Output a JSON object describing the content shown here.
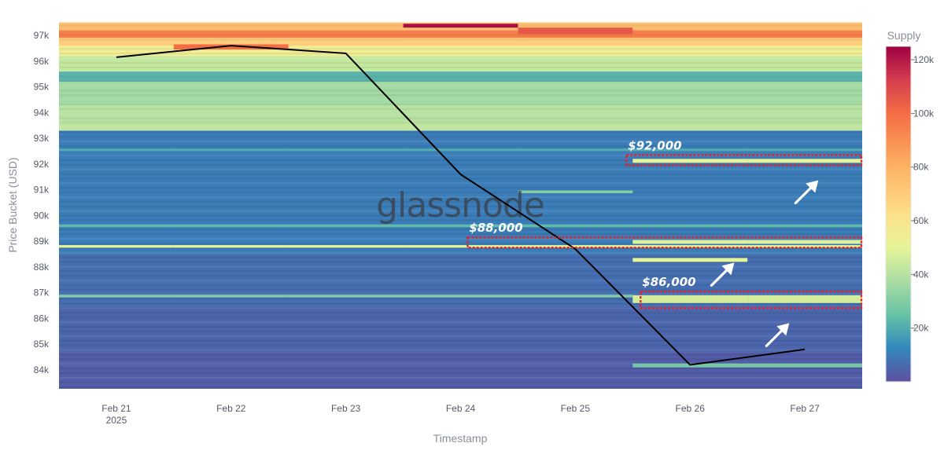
{
  "chart_data": {
    "type": "heatmap",
    "watermark": "glassnode",
    "xlabel": "Timestamp",
    "ylabel": "Price Bucket (USD)",
    "x_categories": [
      "Feb 21",
      "Feb 22",
      "Feb 23",
      "Feb 24",
      "Feb 25",
      "Feb 26",
      "Feb 27"
    ],
    "x_sublabel": {
      "category": "Feb 21",
      "text": "2025"
    },
    "y_ticks": [
      84000,
      85000,
      86000,
      87000,
      88000,
      89000,
      90000,
      91000,
      92000,
      93000,
      94000,
      95000,
      96000,
      97000
    ],
    "y_tick_labels": [
      "84k",
      "85k",
      "86k",
      "87k",
      "88k",
      "89k",
      "90k",
      "91k",
      "92k",
      "93k",
      "94k",
      "95k",
      "96k",
      "97k"
    ],
    "ylim": [
      83250,
      97500
    ],
    "colorscale": {
      "title": "Supply",
      "min": 0,
      "max": 125000,
      "ticks": [
        20000,
        40000,
        60000,
        80000,
        100000,
        120000
      ],
      "tick_labels": [
        "20k",
        "40k",
        "60k",
        "80k",
        "100k",
        "120k"
      ]
    },
    "price_line": {
      "color": "#000000",
      "points": [
        {
          "x": "Feb 21",
          "y": 96150
        },
        {
          "x": "Feb 22",
          "y": 96600
        },
        {
          "x": "Feb 23",
          "y": 96300
        },
        {
          "x": "Feb 24",
          "y": 91600
        },
        {
          "x": "Feb 25",
          "y": 88700
        },
        {
          "x": "Feb 26",
          "y": 84200
        },
        {
          "x": "Feb 27",
          "y": 84800
        }
      ]
    },
    "supply_bands": {
      "description": "Supply per price bucket (rows apply to all days unless restricted)",
      "rows": [
        {
          "from": 83250,
          "to": 84700,
          "value": 3000
        },
        {
          "from": 84700,
          "to": 86500,
          "value": 5000
        },
        {
          "from": 86500,
          "to": 88500,
          "value": 7000
        },
        {
          "from": 88500,
          "to": 93300,
          "value": 10000
        },
        {
          "from": 93300,
          "to": 93600,
          "value": 42000
        },
        {
          "from": 93600,
          "to": 94300,
          "value": 40000
        },
        {
          "from": 94300,
          "to": 95200,
          "value": 36000
        },
        {
          "from": 95200,
          "to": 95600,
          "value": 22000
        },
        {
          "from": 95600,
          "to": 96200,
          "value": 43000
        },
        {
          "from": 96200,
          "to": 96600,
          "value": 55000
        },
        {
          "from": 96600,
          "to": 96900,
          "value": 70000
        },
        {
          "from": 96900,
          "to": 97200,
          "value": 95000
        },
        {
          "from": 97200,
          "to": 97500,
          "value": 75000
        }
      ],
      "highlights": [
        {
          "from": 88750,
          "to": 88850,
          "value": 52000,
          "days": [
            "Feb 21",
            "Feb 22",
            "Feb 23",
            "Feb 24",
            "Feb 25",
            "Feb 26",
            "Feb 27"
          ]
        },
        {
          "from": 86820,
          "to": 86920,
          "value": 30000,
          "days": [
            "Feb 21",
            "Feb 22",
            "Feb 23",
            "Feb 24",
            "Feb 25"
          ]
        },
        {
          "from": 89550,
          "to": 89650,
          "value": 24000,
          "days": [
            "Feb 21",
            "Feb 22",
            "Feb 23",
            "Feb 24",
            "Feb 25",
            "Feb 26",
            "Feb 27"
          ]
        },
        {
          "from": 92500,
          "to": 92600,
          "value": 20000,
          "days": [
            "Feb 21",
            "Feb 22",
            "Feb 23",
            "Feb 24",
            "Feb 25",
            "Feb 26",
            "Feb 27"
          ]
        },
        {
          "from": 90870,
          "to": 90970,
          "value": 32000,
          "days": [
            "Feb 25"
          ]
        },
        {
          "from": 92050,
          "to": 92200,
          "value": 52000,
          "days": [
            "Feb 26",
            "Feb 27"
          ]
        },
        {
          "from": 88900,
          "to": 89050,
          "value": 48000,
          "days": [
            "Feb 26",
            "Feb 27"
          ]
        },
        {
          "from": 88200,
          "to": 88350,
          "value": 50000,
          "days": [
            "Feb 26"
          ]
        },
        {
          "from": 86600,
          "to": 86900,
          "value": 46000,
          "days": [
            "Feb 26",
            "Feb 27"
          ]
        },
        {
          "from": 84100,
          "to": 84250,
          "value": 28000,
          "days": [
            "Feb 26",
            "Feb 27"
          ]
        },
        {
          "from": 97300,
          "to": 97450,
          "value": 122000,
          "days": [
            "Feb 24"
          ]
        },
        {
          "from": 97050,
          "to": 97300,
          "value": 105000,
          "days": [
            "Feb 25"
          ]
        },
        {
          "from": 96450,
          "to": 96650,
          "value": 100000,
          "days": [
            "Feb 22"
          ]
        }
      ]
    },
    "annotations": [
      {
        "label": "$92,000",
        "box_from": 91950,
        "box_to": 92350,
        "box_start": "Feb 26"
      },
      {
        "label": "$88,000",
        "box_from": 88750,
        "box_to": 89150,
        "box_start": "Feb 25"
      },
      {
        "label": "$86,000",
        "box_from": 86400,
        "box_to": 87050,
        "box_start": "Feb 26"
      }
    ]
  }
}
